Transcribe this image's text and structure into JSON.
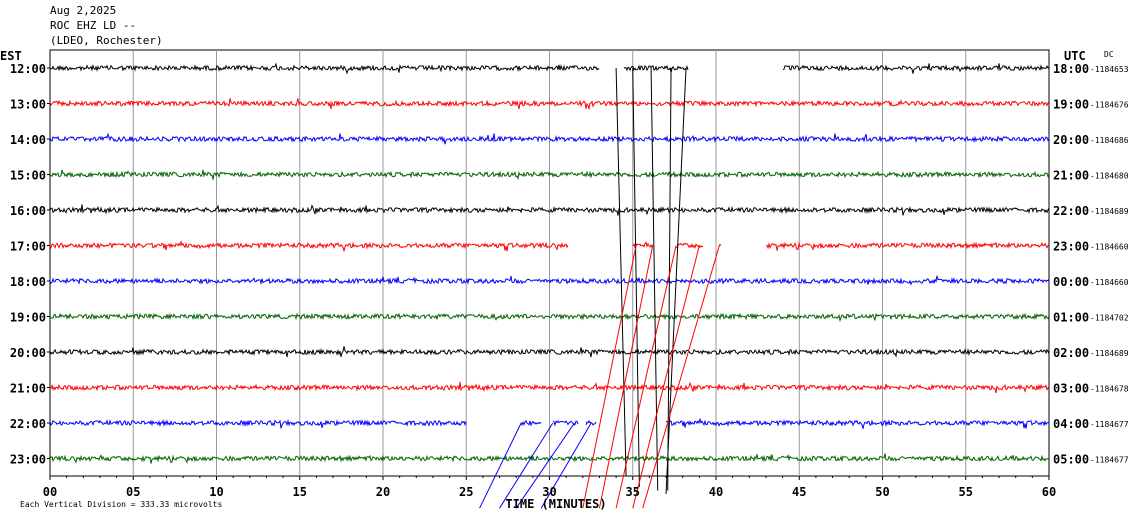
{
  "header": {
    "date": "Aug 2,2025",
    "station": "ROC EHZ LD --",
    "network": "(LDEO, Rochester)"
  },
  "chart_data": {
    "type": "line",
    "left_axis_title": "EST",
    "right_axis_title": "UTC",
    "dc_title": "DC",
    "xlabel": "TIME (MINUTES)",
    "xlim": [
      0,
      60
    ],
    "x_ticks": [
      "00",
      "05",
      "10",
      "15",
      "20",
      "25",
      "30",
      "35",
      "40",
      "45",
      "50",
      "55",
      "60"
    ],
    "footer_note": "Each Vertical Division =  333.33 microvolts",
    "grid": true,
    "rows": [
      {
        "est": "12:00",
        "utc": "18:00",
        "dc": "-1184653",
        "color": "#000000",
        "gaps": [
          [
            33,
            34.5
          ],
          [
            38.3,
            44
          ]
        ]
      },
      {
        "est": "13:00",
        "utc": "19:00",
        "dc": "-1184676",
        "color": "#ff0000",
        "gaps": []
      },
      {
        "est": "14:00",
        "utc": "20:00",
        "dc": "-1184686",
        "color": "#0000ff",
        "gaps": []
      },
      {
        "est": "15:00",
        "utc": "21:00",
        "dc": "-1184680",
        "color": "#006400",
        "gaps": []
      },
      {
        "est": "16:00",
        "utc": "22:00",
        "dc": "-1184689",
        "color": "#000000",
        "gaps": []
      },
      {
        "est": "17:00",
        "utc": "23:00",
        "dc": "-1184660",
        "color": "#ff0000",
        "gaps": [
          [
            31.1,
            35
          ],
          [
            36.2,
            37.6
          ],
          [
            39.2,
            40.2
          ],
          [
            40.3,
            43
          ]
        ]
      },
      {
        "est": "18:00",
        "utc": "00:00",
        "dc": "-1184660",
        "color": "#0000ff",
        "gaps": []
      },
      {
        "est": "19:00",
        "utc": "01:00",
        "dc": "-1184702",
        "color": "#006400",
        "gaps": []
      },
      {
        "est": "20:00",
        "utc": "02:00",
        "dc": "-1184689",
        "color": "#000000",
        "gaps": []
      },
      {
        "est": "21:00",
        "utc": "03:00",
        "dc": "-1184678",
        "color": "#ff0000",
        "gaps": []
      },
      {
        "est": "22:00",
        "utc": "04:00",
        "dc": "-1184677",
        "color": "#0000ff",
        "gaps": [
          [
            25,
            28.3
          ],
          [
            29.5,
            30.2
          ],
          [
            31.7,
            32.2
          ],
          [
            32.8,
            37
          ]
        ]
      },
      {
        "est": "23:00",
        "utc": "05:00",
        "dc": "-1184677",
        "color": "#006400",
        "gaps": []
      }
    ]
  }
}
